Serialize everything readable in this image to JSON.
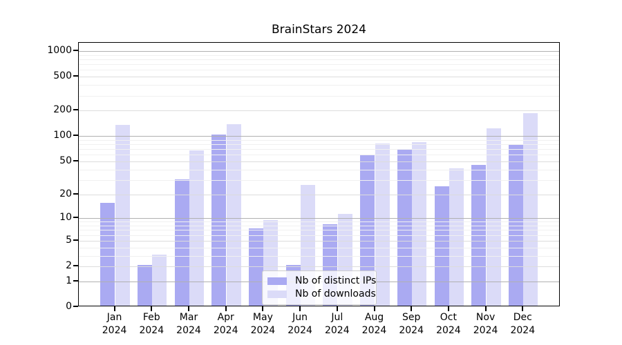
{
  "title": "BrainStars 2024",
  "legend": {
    "items": [
      {
        "label": "Nb of distinct IPs",
        "color": "#aaaaf2"
      },
      {
        "label": "Nb of downloads",
        "color": "#dbdbf8"
      }
    ]
  },
  "axes": {
    "y_ticks": [
      0,
      1,
      2,
      5,
      10,
      20,
      50,
      100,
      200,
      500,
      1000
    ],
    "x_tick_year": "2024"
  },
  "chart_data": {
    "type": "bar",
    "title": "BrainStars 2024",
    "categories": [
      "Jan 2024",
      "Feb 2024",
      "Mar 2024",
      "Apr 2024",
      "May 2024",
      "Jun 2024",
      "Jul 2024",
      "Aug 2024",
      "Sep 2024",
      "Oct 2024",
      "Nov 2024",
      "Dec 2024"
    ],
    "series": [
      {
        "name": "Nb of distinct IPs",
        "color": "#aaaaf2",
        "values": [
          15,
          2,
          29,
          100,
          7,
          2,
          8,
          57,
          68,
          24,
          44,
          76
        ]
      },
      {
        "name": "Nb of downloads",
        "color": "#dbdbf8",
        "values": [
          130,
          3,
          65,
          133,
          9,
          25,
          11,
          79,
          81,
          40,
          118,
          180
        ]
      }
    ],
    "xlabel": "",
    "ylabel": "",
    "yscale": "log1p (symlog-like; ticks at 0,1,2,5,10,20,50,100,200,500,1000)",
    "ylim": [
      0,
      1250
    ],
    "yticks": [
      0,
      1,
      2,
      5,
      10,
      20,
      50,
      100,
      200,
      500,
      1000
    ],
    "grid": "horizontal major + minor gridlines, drawn above bars",
    "legend_position": "lower center"
  }
}
